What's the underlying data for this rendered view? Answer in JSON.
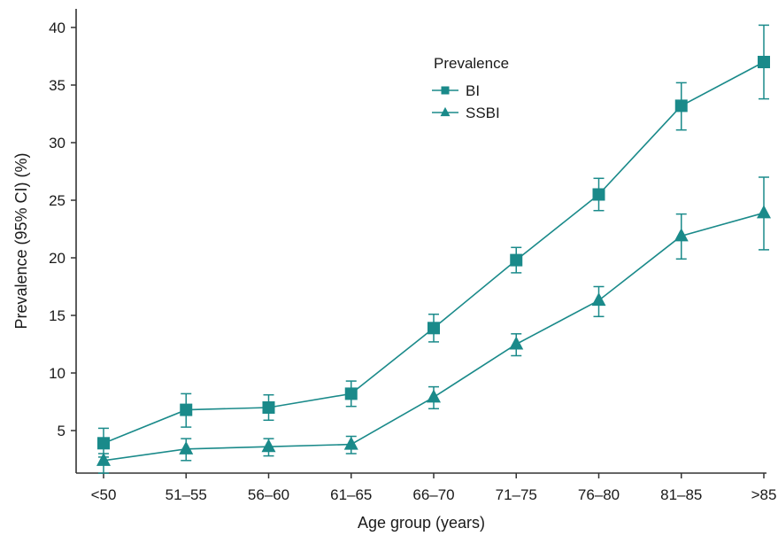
{
  "chart_data": {
    "type": "line",
    "title": "",
    "xlabel": "Age group (years)",
    "ylabel": "Prevalence (95% CI) (%)",
    "categories": [
      "<50",
      "51–55",
      "56–60",
      "61–65",
      "66–70",
      "71–75",
      "76–80",
      "81–85",
      ">85"
    ],
    "ylim": [
      1,
      41
    ],
    "yticks": [
      5,
      10,
      15,
      20,
      25,
      30,
      35,
      40
    ],
    "grid": false,
    "legend": {
      "title": "Prevalence",
      "position": "top-center"
    },
    "color": "#1a8a8a",
    "series": [
      {
        "name": "BI",
        "marker": "square",
        "values": [
          3.9,
          6.8,
          7.0,
          8.2,
          13.9,
          19.8,
          25.5,
          33.2,
          37.0
        ],
        "ci_low": [
          2.7,
          5.3,
          5.9,
          7.1,
          12.7,
          18.7,
          24.1,
          31.1,
          33.8
        ],
        "ci_high": [
          5.2,
          8.2,
          8.1,
          9.3,
          15.1,
          20.9,
          26.9,
          35.2,
          40.2
        ]
      },
      {
        "name": "SSBI",
        "marker": "triangle",
        "values": [
          2.4,
          3.4,
          3.6,
          3.8,
          7.9,
          12.5,
          16.3,
          21.9,
          23.9
        ],
        "ci_low": [
          1.3,
          2.4,
          2.8,
          3.0,
          6.9,
          11.5,
          14.9,
          19.9,
          20.7
        ],
        "ci_high": [
          3.0,
          4.3,
          4.3,
          4.5,
          8.8,
          13.4,
          17.5,
          23.8,
          27.0
        ]
      }
    ]
  }
}
